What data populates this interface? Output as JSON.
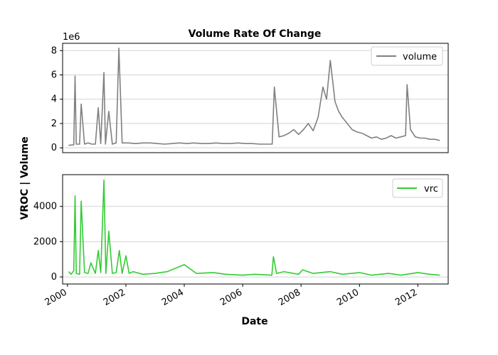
{
  "colors": {
    "volume": "#808080",
    "vrc": "#33cc33",
    "grid": "#d3d3d3",
    "axis": "#000000"
  },
  "chart_data": [
    {
      "type": "line",
      "title": "Volume Rate Of Change",
      "offset_text": "1e6",
      "x_range": [
        "1999-11-01",
        "2013-01-15"
      ],
      "ylim": [
        -400000,
        8600000
      ],
      "yticks": [
        0,
        2000000,
        4000000,
        6000000,
        8000000
      ],
      "ytick_labels": [
        "0",
        "2",
        "4",
        "6",
        "8"
      ],
      "grid": "horizontal",
      "legend": {
        "placement": "top-right",
        "entries": [
          "volume"
        ]
      },
      "series": [
        {
          "name": "volume",
          "x": [
            "2000-01-15",
            "2000-03-20",
            "2000-04-05",
            "2000-04-20",
            "2000-06-01",
            "2000-06-20",
            "2000-08-01",
            "2000-09-15",
            "2000-11-01",
            "2000-12-15",
            "2001-01-20",
            "2001-02-20",
            "2001-04-01",
            "2001-04-20",
            "2001-06-01",
            "2001-07-15",
            "2001-09-01",
            "2001-10-05",
            "2001-11-15",
            "2002-02-01",
            "2002-05-01",
            "2002-08-01",
            "2002-11-01",
            "2003-02-01",
            "2003-05-01",
            "2003-08-01",
            "2003-11-01",
            "2004-02-01",
            "2004-05-01",
            "2004-08-01",
            "2004-11-01",
            "2005-02-01",
            "2005-05-01",
            "2005-08-01",
            "2005-11-01",
            "2006-02-01",
            "2006-05-01",
            "2006-08-01",
            "2006-11-01",
            "2007-01-05",
            "2007-02-01",
            "2007-04-01",
            "2007-06-01",
            "2007-08-01",
            "2007-10-01",
            "2007-12-01",
            "2008-02-01",
            "2008-04-01",
            "2008-06-01",
            "2008-08-01",
            "2008-10-01",
            "2008-11-15",
            "2009-01-01",
            "2009-03-01",
            "2009-04-15",
            "2009-06-01",
            "2009-08-01",
            "2009-10-01",
            "2009-12-01",
            "2010-02-01",
            "2010-04-01",
            "2010-06-01",
            "2010-08-01",
            "2010-10-01",
            "2010-12-01",
            "2011-02-01",
            "2011-04-01",
            "2011-06-01",
            "2011-08-01",
            "2011-08-20",
            "2011-10-01",
            "2011-12-01",
            "2012-02-01",
            "2012-04-01",
            "2012-06-01",
            "2012-08-01",
            "2012-10-01"
          ],
          "values": [
            200000,
            250000,
            5900000,
            300000,
            300000,
            3600000,
            300000,
            400000,
            300000,
            300000,
            3300000,
            350000,
            6200000,
            300000,
            3000000,
            300000,
            400000,
            8200000,
            400000,
            400000,
            350000,
            400000,
            400000,
            350000,
            300000,
            350000,
            400000,
            350000,
            400000,
            350000,
            350000,
            400000,
            350000,
            350000,
            400000,
            350000,
            350000,
            300000,
            300000,
            300000,
            5000000,
            900000,
            1000000,
            1200000,
            1500000,
            1100000,
            1500000,
            2000000,
            1400000,
            2500000,
            5000000,
            4000000,
            7200000,
            3800000,
            3000000,
            2500000,
            2000000,
            1500000,
            1300000,
            1200000,
            1000000,
            800000,
            900000,
            700000,
            800000,
            1000000,
            800000,
            900000,
            1000000,
            5200000,
            1500000,
            900000,
            800000,
            800000,
            700000,
            700000,
            600000
          ]
        }
      ]
    },
    {
      "type": "line",
      "xlabel": "Date",
      "x_range": [
        "1999-11-01",
        "2013-01-15"
      ],
      "ylim": [
        -400,
        5800
      ],
      "yticks": [
        0,
        2000,
        4000
      ],
      "ytick_labels": [
        "0",
        "2000",
        "4000"
      ],
      "xticks": [
        "2000-01-01",
        "2002-01-01",
        "2004-01-01",
        "2006-01-01",
        "2008-01-01",
        "2010-01-01",
        "2012-01-01"
      ],
      "xtick_labels": [
        "2000",
        "2002",
        "2004",
        "2006",
        "2008",
        "2010",
        "2012"
      ],
      "grid": "horizontal",
      "legend": {
        "placement": "top-right",
        "entries": [
          "vrc"
        ]
      },
      "series": [
        {
          "name": "vrc",
          "x": [
            "2000-01-15",
            "2000-02-15",
            "2000-03-20",
            "2000-04-05",
            "2000-04-20",
            "2000-06-01",
            "2000-06-20",
            "2000-08-01",
            "2000-09-15",
            "2000-10-20",
            "2000-12-15",
            "2001-01-20",
            "2001-02-20",
            "2001-04-01",
            "2001-04-25",
            "2001-06-01",
            "2001-07-15",
            "2001-09-01",
            "2001-10-10",
            "2001-11-15",
            "2002-01-01",
            "2002-02-10",
            "2002-04-01",
            "2002-08-01",
            "2003-01-01",
            "2003-06-01",
            "2004-01-01",
            "2004-06-01",
            "2005-01-01",
            "2005-06-01",
            "2006-01-01",
            "2006-06-01",
            "2007-01-01",
            "2007-01-20",
            "2007-03-01",
            "2007-06-01",
            "2007-12-01",
            "2008-01-20",
            "2008-06-01",
            "2009-01-01",
            "2009-06-01",
            "2010-01-01",
            "2010-06-01",
            "2011-01-01",
            "2011-06-01",
            "2012-01-01",
            "2012-06-01",
            "2012-10-01"
          ],
          "values": [
            300,
            150,
            350,
            4600,
            200,
            150,
            4300,
            250,
            200,
            800,
            200,
            1500,
            250,
            5500,
            200,
            2600,
            200,
            250,
            1500,
            200,
            1200,
            200,
            300,
            150,
            200,
            300,
            700,
            200,
            250,
            150,
            100,
            150,
            100,
            1150,
            200,
            300,
            150,
            400,
            200,
            300,
            150,
            250,
            100,
            200,
            100,
            250,
            150,
            100
          ]
        }
      ]
    }
  ]
}
